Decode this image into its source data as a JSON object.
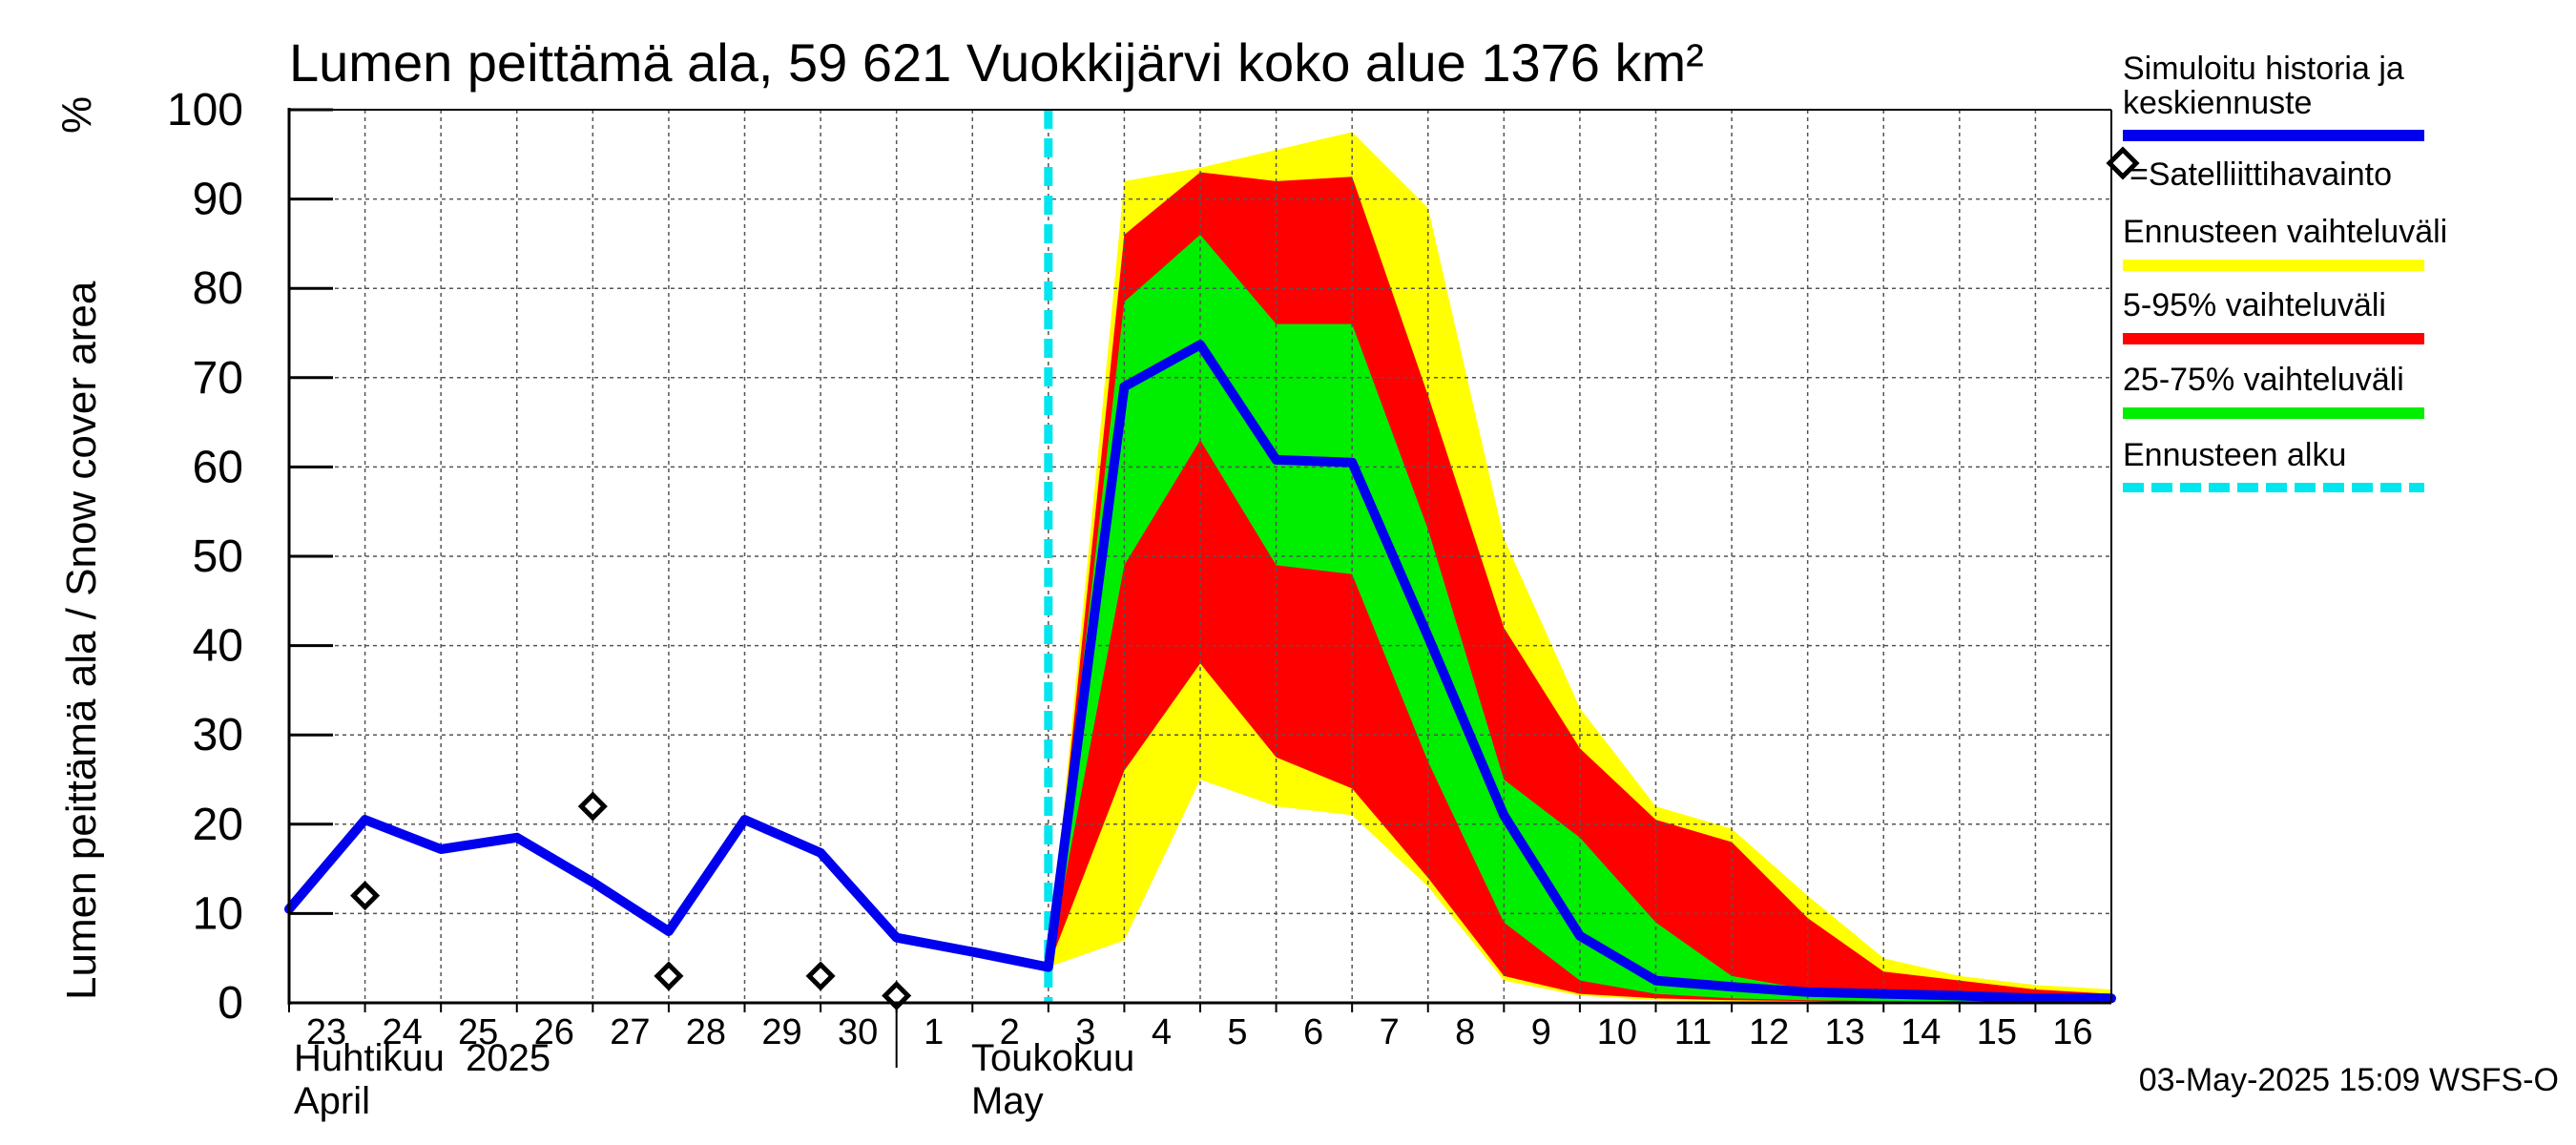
{
  "chart_data": {
    "type": "area",
    "title": "Lumen peittämä ala, 59 621 Vuokkijärvi koko alue 1376 km²",
    "ylabel": "Lumen peittämä ala / Snow cover area",
    "yunit": "%",
    "ylim": [
      0,
      100
    ],
    "yticks": [
      0,
      10,
      20,
      30,
      40,
      50,
      60,
      70,
      80,
      90,
      100
    ],
    "xlim": [
      "2025-04-23",
      "2025-05-17"
    ],
    "xtick_labels": [
      "23",
      "24",
      "25",
      "26",
      "27",
      "28",
      "29",
      "30",
      "1",
      "2",
      "3",
      "4",
      "5",
      "6",
      "7",
      "8",
      "9",
      "10",
      "11",
      "12",
      "13",
      "14",
      "15",
      "16"
    ],
    "month_labels": [
      {
        "fi": "Huhtikuu  2025",
        "en": "April",
        "start": "2025-04-23"
      },
      {
        "fi": "Toukokuu",
        "en": "May",
        "start": "2025-05-01"
      }
    ],
    "grid": true,
    "forecast_start": "2025-05-03",
    "series": [
      {
        "name": "Simuloitu historia ja keskiennuste",
        "color": "#0000ee",
        "points": [
          [
            "2025-04-23",
            10.5
          ],
          [
            "2025-04-24",
            20.5
          ],
          [
            "2025-04-25",
            17.2
          ],
          [
            "2025-04-26",
            18.5
          ],
          [
            "2025-04-27",
            13.5
          ],
          [
            "2025-04-28",
            8
          ],
          [
            "2025-04-29",
            20.5
          ],
          [
            "2025-04-30",
            16.8
          ],
          [
            "2025-05-01",
            7.3
          ],
          [
            "2025-05-02",
            5.7
          ],
          [
            "2025-05-03",
            4
          ],
          [
            "2025-05-04",
            69
          ],
          [
            "2025-05-05",
            73.7
          ],
          [
            "2025-05-06",
            60.8
          ],
          [
            "2025-05-07",
            60.5
          ],
          [
            "2025-05-08",
            41
          ],
          [
            "2025-05-09",
            21
          ],
          [
            "2025-05-10",
            7.5
          ],
          [
            "2025-05-11",
            2.5
          ],
          [
            "2025-05-12",
            1.8
          ],
          [
            "2025-05-13",
            1.2
          ],
          [
            "2025-05-14",
            1
          ],
          [
            "2025-05-15",
            0.8
          ],
          [
            "2025-05-16",
            0.5
          ],
          [
            "2025-05-17",
            0.5
          ]
        ]
      },
      {
        "name": "=Satelliittihavainto",
        "marker": "diamond",
        "points": [
          [
            "2025-04-24",
            12
          ],
          [
            "2025-04-27",
            22
          ],
          [
            "2025-04-28",
            3
          ],
          [
            "2025-04-30",
            3
          ],
          [
            "2025-05-01",
            0.8
          ]
        ]
      }
    ],
    "bands": [
      {
        "name": "Ennusteen vaihteluväli",
        "color": "#ffff00",
        "x": [
          "2025-05-03",
          "2025-05-04",
          "2025-05-05",
          "2025-05-06",
          "2025-05-07",
          "2025-05-08",
          "2025-05-09",
          "2025-05-10",
          "2025-05-11",
          "2025-05-12",
          "2025-05-13",
          "2025-05-14",
          "2025-05-15",
          "2025-05-16",
          "2025-05-17"
        ],
        "upper": [
          4,
          92,
          93.5,
          95.5,
          97.5,
          89,
          52,
          33,
          22,
          19.5,
          12,
          5,
          3,
          2,
          1.5
        ],
        "lower": [
          4,
          7,
          25,
          22,
          21,
          13,
          2.5,
          0.8,
          0.3,
          0.2,
          0.2,
          0.1,
          0.1,
          0,
          0
        ]
      },
      {
        "name": "5-95% vaihteluväli",
        "color": "#ff0000",
        "x": [
          "2025-05-03",
          "2025-05-04",
          "2025-05-05",
          "2025-05-06",
          "2025-05-07",
          "2025-05-08",
          "2025-05-09",
          "2025-05-10",
          "2025-05-11",
          "2025-05-12",
          "2025-05-13",
          "2025-05-14",
          "2025-05-15",
          "2025-05-16",
          "2025-05-17"
        ],
        "upper": [
          4,
          86,
          93,
          92,
          92.5,
          68,
          42,
          28.5,
          20.5,
          18,
          9.5,
          3.5,
          2.5,
          1.5,
          1
        ],
        "lower": [
          4,
          26,
          38,
          27.5,
          24,
          14,
          3,
          1,
          0.5,
          0.3,
          0.2,
          0.1,
          0.1,
          0,
          0
        ]
      },
      {
        "name": "25-75% vaihteluväli",
        "color": "#00ee00",
        "x": [
          "2025-05-03",
          "2025-05-04",
          "2025-05-05",
          "2025-05-06",
          "2025-05-07",
          "2025-05-08",
          "2025-05-09",
          "2025-05-10",
          "2025-05-11",
          "2025-05-12",
          "2025-05-13",
          "2025-05-14",
          "2025-05-15",
          "2025-05-16",
          "2025-05-17"
        ],
        "upper": [
          4,
          78.5,
          86,
          76,
          76,
          53,
          25,
          18.5,
          9,
          3,
          1.5,
          1.2,
          1,
          0.8,
          0.5
        ],
        "lower": [
          4,
          49,
          63,
          49,
          48,
          27,
          9,
          2.5,
          1,
          0.5,
          0.3,
          0.2,
          0.1,
          0,
          0
        ]
      }
    ],
    "legend": {
      "placement": "right",
      "entries": [
        {
          "label": "Simuloitu historia ja keskiennuste",
          "color": "#0000ee",
          "style": "line"
        },
        {
          "label": "=Satelliittihavainto",
          "color": "#000000",
          "style": "diamond"
        },
        {
          "label": "Ennusteen vaihteluväli",
          "color": "#ffff00",
          "style": "line"
        },
        {
          "label": "5-95% vaihteluväli",
          "color": "#ff0000",
          "style": "line"
        },
        {
          "label": "25-75% vaihteluväli",
          "color": "#00ee00",
          "style": "line"
        },
        {
          "label": "Ennusteen alku",
          "color": "#00e5ee",
          "style": "dashed"
        }
      ]
    },
    "footer": "03-May-2025 15:09 WSFS-O"
  }
}
